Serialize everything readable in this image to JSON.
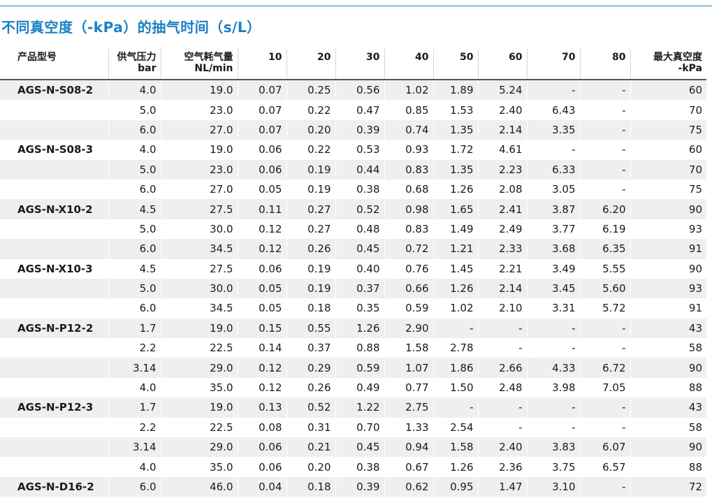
{
  "title": "不同真空度（-kPa）的抽气时间（s/L）",
  "header": {
    "model": "产品型号",
    "pressure": [
      "供气压力",
      "bar"
    ],
    "air": [
      "空气耗气量",
      "NL/min"
    ],
    "levels": [
      "10",
      "20",
      "30",
      "40",
      "50",
      "60",
      "70",
      "80"
    ],
    "max": [
      "最大真空度",
      "-kPa"
    ]
  },
  "rows": [
    {
      "model": "AGS-N-S08-2",
      "cells": [
        "4.0",
        "19.0",
        "0.07",
        "0.25",
        "0.56",
        "1.02",
        "1.89",
        "5.24",
        "-",
        "-",
        "60"
      ]
    },
    {
      "model": "",
      "cells": [
        "5.0",
        "23.0",
        "0.07",
        "0.22",
        "0.47",
        "0.85",
        "1.53",
        "2.40",
        "6.43",
        "-",
        "70"
      ]
    },
    {
      "model": "",
      "cells": [
        "6.0",
        "27.0",
        "0.07",
        "0.20",
        "0.39",
        "0.74",
        "1.35",
        "2.14",
        "3.35",
        "-",
        "75"
      ]
    },
    {
      "model": "AGS-N-S08-3",
      "cells": [
        "4.0",
        "19.0",
        "0.06",
        "0.22",
        "0.53",
        "0.93",
        "1.72",
        "4.61",
        "-",
        "-",
        "60"
      ]
    },
    {
      "model": "",
      "cells": [
        "5.0",
        "23.0",
        "0.06",
        "0.19",
        "0.44",
        "0.83",
        "1.35",
        "2.23",
        "6.33",
        "-",
        "70"
      ]
    },
    {
      "model": "",
      "cells": [
        "6.0",
        "27.0",
        "0.05",
        "0.19",
        "0.38",
        "0.68",
        "1.26",
        "2.08",
        "3.05",
        "-",
        "75"
      ]
    },
    {
      "model": "AGS-N-X10-2",
      "cells": [
        "4.5",
        "27.5",
        "0.11",
        "0.27",
        "0.52",
        "0.98",
        "1.65",
        "2.41",
        "3.87",
        "6.20",
        "90"
      ]
    },
    {
      "model": "",
      "cells": [
        "5.0",
        "30.0",
        "0.12",
        "0.27",
        "0.48",
        "0.83",
        "1.49",
        "2.49",
        "3.77",
        "6.19",
        "93"
      ]
    },
    {
      "model": "",
      "cells": [
        "6.0",
        "34.5",
        "0.12",
        "0.26",
        "0.45",
        "0.72",
        "1.21",
        "2.33",
        "3.68",
        "6.35",
        "91"
      ]
    },
    {
      "model": "AGS-N-X10-3",
      "cells": [
        "4.5",
        "27.5",
        "0.06",
        "0.19",
        "0.40",
        "0.76",
        "1.45",
        "2.21",
        "3.49",
        "5.55",
        "90"
      ]
    },
    {
      "model": "",
      "cells": [
        "5.0",
        "30.0",
        "0.05",
        "0.19",
        "0.37",
        "0.66",
        "1.26",
        "2.14",
        "3.45",
        "5.60",
        "93"
      ]
    },
    {
      "model": "",
      "cells": [
        "6.0",
        "34.5",
        "0.05",
        "0.18",
        "0.35",
        "0.59",
        "1.02",
        "2.10",
        "3.31",
        "5.72",
        "91"
      ]
    },
    {
      "model": "AGS-N-P12-2",
      "cells": [
        "1.7",
        "19.0",
        "0.15",
        "0.55",
        "1.26",
        "2.90",
        "-",
        "-",
        "-",
        "-",
        "43"
      ]
    },
    {
      "model": "",
      "cells": [
        "2.2",
        "22.5",
        "0.14",
        "0.37",
        "0.88",
        "1.58",
        "2.78",
        "-",
        "-",
        "-",
        "58"
      ]
    },
    {
      "model": "",
      "cells": [
        "3.14",
        "29.0",
        "0.12",
        "0.29",
        "0.59",
        "1.07",
        "1.86",
        "2.66",
        "4.33",
        "6.72",
        "90"
      ]
    },
    {
      "model": "",
      "cells": [
        "4.0",
        "35.0",
        "0.12",
        "0.26",
        "0.49",
        "0.77",
        "1.50",
        "2.48",
        "3.98",
        "7.05",
        "88"
      ]
    },
    {
      "model": "AGS-N-P12-3",
      "cells": [
        "1.7",
        "19.0",
        "0.13",
        "0.52",
        "1.22",
        "2.75",
        "-",
        "-",
        "-",
        "-",
        "43"
      ]
    },
    {
      "model": "",
      "cells": [
        "2.2",
        "22.5",
        "0.08",
        "0.31",
        "0.70",
        "1.33",
        "2.54",
        "-",
        "-",
        "-",
        "58"
      ]
    },
    {
      "model": "",
      "cells": [
        "3.14",
        "29.0",
        "0.06",
        "0.21",
        "0.45",
        "0.94",
        "1.58",
        "2.40",
        "3.83",
        "6.07",
        "90"
      ]
    },
    {
      "model": "",
      "cells": [
        "4.0",
        "35.0",
        "0.06",
        "0.20",
        "0.38",
        "0.67",
        "1.26",
        "2.36",
        "3.75",
        "6.57",
        "88"
      ]
    },
    {
      "model": "AGS-N-D16-2",
      "cells": [
        "6.0",
        "46.0",
        "0.04",
        "0.18",
        "0.39",
        "0.62",
        "0.95",
        "1.47",
        "3.10",
        "-",
        "72"
      ]
    }
  ],
  "colors": {
    "accent": "#1b7fc4",
    "row_shade": "#efefef"
  }
}
